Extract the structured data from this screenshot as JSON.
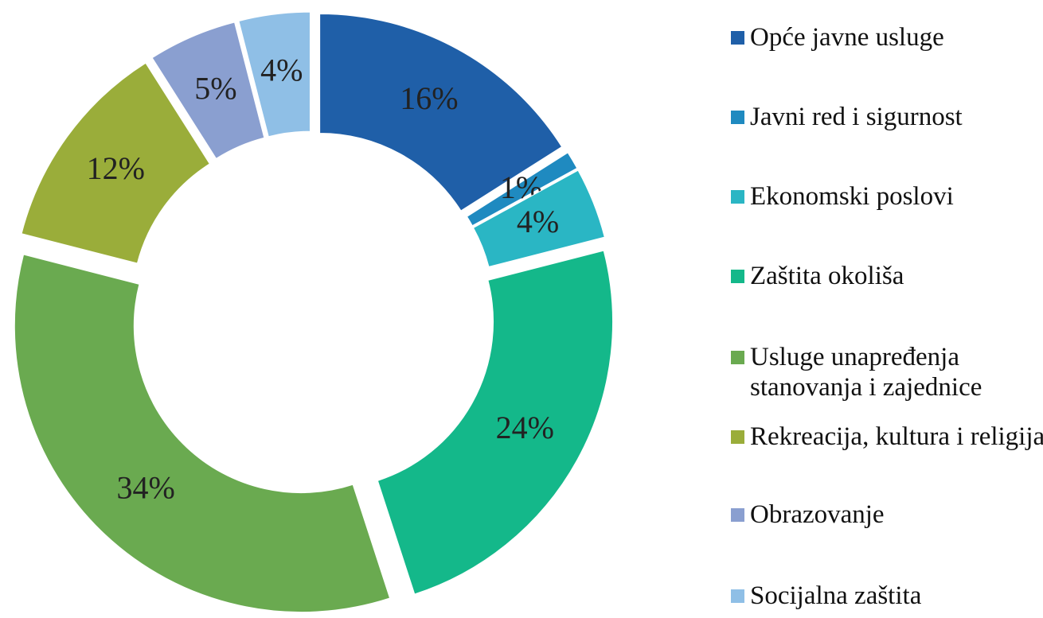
{
  "chart_data": {
    "type": "pie",
    "categories": [
      "Opće javne usluge",
      "Javni red i sigurnost",
      "Ekonomski poslovi",
      "Zaštita okoliša",
      "Usluge unapređenja stanovanja i zajednice",
      "Rekreacija, kultura i religija",
      "Obrazovanje",
      "Socijalna zaštita"
    ],
    "values": [
      16,
      1,
      4,
      24,
      34,
      12,
      5,
      4
    ],
    "value_labels": [
      "16%",
      "1%",
      "4%",
      "24%",
      "34%",
      "12%",
      "5%",
      "4%"
    ],
    "colors": [
      "#1f5fa8",
      "#1f8ac0",
      "#2ab6c4",
      "#14b88a",
      "#6aaa50",
      "#9aad3a",
      "#8a9fd0",
      "#8fbfe6"
    ],
    "donut": true,
    "exploded": true,
    "legend": "right"
  }
}
